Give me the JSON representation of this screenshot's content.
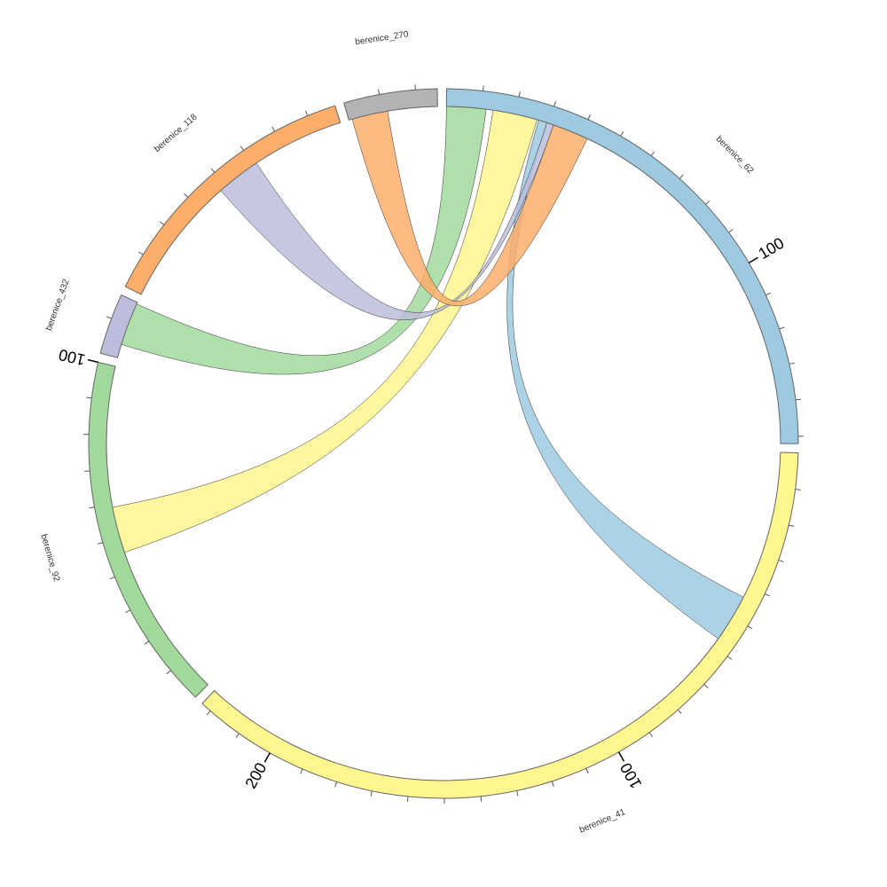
{
  "chart_data": {
    "type": "chord",
    "sectors": [
      {
        "name": "berenice_62",
        "length": 152,
        "color": "#9ecae1"
      },
      {
        "name": "berenice_41",
        "length": 223,
        "color": "#fff68f"
      },
      {
        "name": "berenice_92",
        "length": 100,
        "color": "#a1d99b"
      },
      {
        "name": "berenice_432",
        "length": 17,
        "color": "#bcbddc"
      },
      {
        "name": "berenice_118",
        "length": 78,
        "color": "#fdae6b"
      },
      {
        "name": "berenice_270",
        "length": 26,
        "color": "#b3b3b3"
      }
    ],
    "links": [
      {
        "sector1": "berenice_62",
        "range1": [
          0,
          11.5
        ],
        "sector2": "berenice_432",
        "range2": [
          4,
          16.5
        ],
        "color": "#a1d99b"
      },
      {
        "sector1": "berenice_62",
        "range1": [
          13.5,
          26.5
        ],
        "sector2": "berenice_92",
        "range2": [
          45.5,
          59
        ],
        "color": "#fff68f"
      },
      {
        "sector1": "berenice_62",
        "range1": [
          27,
          29.5
        ],
        "sector2": "berenice_41",
        "range2": [
          43.5,
          57.5
        ],
        "color": "#9ecae1"
      },
      {
        "sector1": "berenice_62",
        "range1": [
          29.5,
          31.5
        ],
        "sector2": "berenice_118",
        "range2": [
          38,
          51
        ],
        "color": "#bcbddc"
      },
      {
        "sector1": "berenice_62",
        "range1": [
          31.5,
          42
        ],
        "sector2": "berenice_270",
        "range2": [
          1,
          11.5
        ],
        "color": "#fdae6b"
      }
    ],
    "tick_step": 10,
    "major_ticks": [
      100,
      200
    ]
  }
}
